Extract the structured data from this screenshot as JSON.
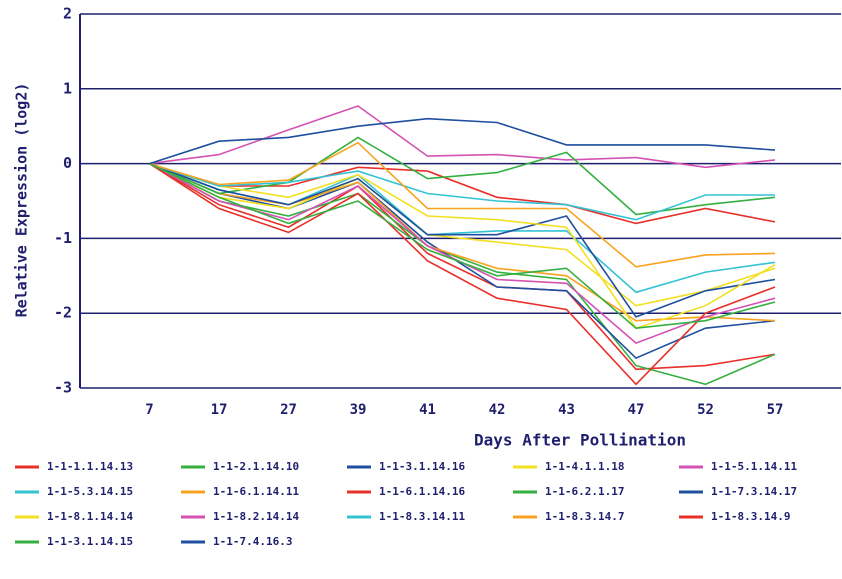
{
  "chart_data": {
    "type": "line",
    "y_label": "Relative Expression (log2)",
    "x_label": "Days After Pollination",
    "categories": [
      "7",
      "17",
      "27",
      "39",
      "41",
      "42",
      "43",
      "47",
      "52",
      "57"
    ],
    "ylim": [
      -3,
      2
    ],
    "yticks": [
      -3,
      -2,
      -1,
      0,
      1,
      2
    ],
    "grid": true,
    "axis_color": "#1f1f6e",
    "series": [
      {
        "name": "1-1-1.1.14.13",
        "color": "#e8302a",
        "values": [
          0,
          -0.55,
          -0.85,
          -0.3,
          -1.2,
          -1.65,
          -1.7,
          -2.75,
          -2.7,
          -2.55
        ]
      },
      {
        "name": "1-1-2.1.14.10",
        "color": "#35b040",
        "values": [
          0,
          -0.5,
          -0.7,
          -0.4,
          -1.1,
          -1.45,
          -1.55,
          -2.7,
          -2.95,
          -2.55
        ]
      },
      {
        "name": "1-1-3.1.14.16",
        "color": "#1f4f9f",
        "values": [
          0,
          -0.4,
          -0.6,
          -0.25,
          -1.05,
          -1.65,
          -1.7,
          -2.6,
          -2.2,
          -2.1
        ]
      },
      {
        "name": "1-1-4.1.1.18",
        "color": "#f2e021",
        "values": [
          0,
          -0.45,
          -0.6,
          -0.2,
          -0.95,
          -1.05,
          -1.15,
          -1.9,
          -1.7,
          -1.4
        ]
      },
      {
        "name": "1-1-5.1.14.11",
        "color": "#d452b4",
        "values": [
          0,
          0.12,
          0.45,
          0.77,
          0.1,
          0.12,
          0.05,
          0.08,
          -0.05,
          0.05
        ]
      },
      {
        "name": "1-1-5.3.14.15",
        "color": "#33c3d3",
        "values": [
          0,
          -0.35,
          -0.55,
          -0.15,
          -0.95,
          -0.9,
          -0.9,
          -1.72,
          -1.45,
          -1.32
        ]
      },
      {
        "name": "1-1-6.1.14.11",
        "color": "#f8a31f",
        "values": [
          0,
          -0.4,
          -0.55,
          -0.25,
          -1.1,
          -1.4,
          -1.5,
          -2.1,
          -2.05,
          -2.1
        ]
      },
      {
        "name": "1-1-6.1.14.16",
        "color": "#e8302a",
        "values": [
          0,
          -0.3,
          -0.3,
          -0.05,
          -0.1,
          -0.45,
          -0.55,
          -0.8,
          -0.6,
          -0.78
        ]
      },
      {
        "name": "1-1-6.2.1.17",
        "color": "#35b040",
        "values": [
          0,
          -0.4,
          -0.25,
          0.35,
          -0.2,
          -0.12,
          0.15,
          -0.68,
          -0.55,
          -0.45
        ]
      },
      {
        "name": "1-1-7.3.14.17",
        "color": "#1f4f9f",
        "values": [
          0,
          -0.35,
          -0.55,
          -0.2,
          -0.95,
          -0.95,
          -0.7,
          -2.05,
          -1.7,
          -1.55
        ]
      },
      {
        "name": "1-1-8.1.14.14",
        "color": "#f2e021",
        "values": [
          0,
          -0.3,
          -0.45,
          -0.15,
          -0.7,
          -0.75,
          -0.85,
          -2.2,
          -1.9,
          -1.35
        ]
      },
      {
        "name": "1-1-8.2.14.14",
        "color": "#d452b4",
        "values": [
          0,
          -0.5,
          -0.75,
          -0.3,
          -1.1,
          -1.55,
          -1.6,
          -2.4,
          -2.05,
          -1.8
        ]
      },
      {
        "name": "1-1-8.3.14.11",
        "color": "#33c3d3",
        "values": [
          0,
          -0.3,
          -0.25,
          -0.1,
          -0.4,
          -0.5,
          -0.55,
          -0.75,
          -0.42,
          -0.42
        ]
      },
      {
        "name": "1-1-8.3.14.7",
        "color": "#f8a31f",
        "values": [
          0,
          -0.28,
          -0.22,
          0.28,
          -0.6,
          -0.6,
          -0.6,
          -1.38,
          -1.22,
          -1.2
        ]
      },
      {
        "name": "1-1-8.3.14.9",
        "color": "#e8302a",
        "values": [
          0,
          -0.6,
          -0.92,
          -0.4,
          -1.3,
          -1.8,
          -1.95,
          -2.95,
          -2.0,
          -1.65
        ]
      },
      {
        "name": "1-1-3.1.14.15",
        "color": "#35b040",
        "values": [
          0,
          -0.45,
          -0.8,
          -0.5,
          -1.15,
          -1.5,
          -1.4,
          -2.2,
          -2.1,
          -1.85
        ]
      },
      {
        "name": "1-1-7.4.16.3",
        "color": "#1f4f9f",
        "values": [
          0,
          0.3,
          0.35,
          0.5,
          0.6,
          0.55,
          0.25,
          0.25,
          0.25,
          0.18
        ]
      }
    ]
  }
}
